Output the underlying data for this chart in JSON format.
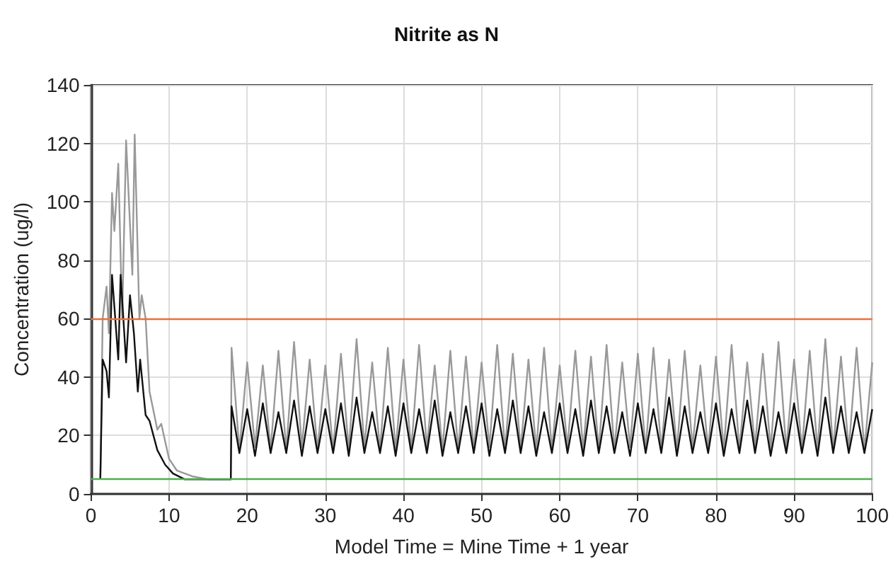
{
  "chart_data": {
    "type": "line",
    "title": "Nitrite as N",
    "xlabel": "Model Time = Mine Time + 1 year",
    "ylabel": "Concentration (ug/l)",
    "xlim": [
      0,
      100
    ],
    "xticks": [
      0,
      10,
      20,
      30,
      40,
      50,
      60,
      70,
      80,
      90,
      100
    ],
    "ylim": [
      0,
      140
    ],
    "yticks": [
      0,
      20,
      40,
      60,
      80,
      100,
      120,
      140
    ],
    "grid": true,
    "marker": "none",
    "line_style": "solid",
    "ref_lines": [
      {
        "axis": "y",
        "value": 60,
        "label": null,
        "color": "#e8703a"
      },
      {
        "axis": "y",
        "value": 5,
        "label": null,
        "color": "#4caf50"
      }
    ],
    "series": [
      {
        "color": "#999999",
        "x": [
          1.2,
          1.5,
          2,
          2.3,
          2.7,
          3,
          3.5,
          4,
          4.5,
          5.3,
          5.6,
          6.2,
          6.5,
          7,
          7.5,
          8.5,
          9,
          10,
          11,
          13,
          15,
          17.9,
          18,
          19,
          20,
          21,
          22,
          23,
          24,
          25,
          26,
          27,
          28,
          29,
          30,
          31,
          32,
          33,
          34,
          35,
          36,
          37,
          38,
          39,
          40,
          41,
          42,
          43,
          44,
          45,
          46,
          47,
          48,
          49,
          50,
          51,
          52,
          53,
          54,
          55,
          56,
          57,
          58,
          59,
          60,
          61,
          62,
          63,
          64,
          65,
          66,
          67,
          68,
          69,
          70,
          71,
          72,
          73,
          74,
          75,
          76,
          77,
          78,
          79,
          80,
          81,
          82,
          83,
          84,
          85,
          86,
          87,
          88,
          89,
          90,
          91,
          92,
          93,
          94,
          95,
          96,
          97,
          98,
          99,
          100
        ],
        "values": [
          5,
          60,
          71,
          55,
          103,
          90,
          113,
          60,
          121,
          75,
          123,
          60,
          68,
          60,
          35,
          22,
          24,
          12,
          8,
          6,
          5,
          5,
          50,
          15,
          45,
          16,
          44,
          15,
          49,
          15,
          52,
          16,
          46,
          15,
          44,
          15,
          48,
          15,
          53,
          16,
          45,
          15,
          50,
          15,
          46,
          15,
          51,
          16,
          44,
          15,
          49,
          15,
          47,
          15,
          45,
          16,
          51,
          15,
          48,
          15,
          46,
          15,
          50,
          15,
          44,
          16,
          49,
          15,
          47,
          15,
          51,
          15,
          45,
          16,
          48,
          15,
          50,
          15,
          46,
          15,
          49,
          16,
          44,
          15,
          47,
          15,
          51,
          15,
          45,
          16,
          48,
          15,
          52,
          15,
          46,
          15,
          49,
          15,
          53,
          15,
          47,
          15,
          50,
          15,
          45
        ]
      },
      {
        "color": "#111111",
        "x": [
          1.2,
          1.5,
          2,
          2.3,
          2.7,
          3.5,
          3.8,
          4.5,
          5,
          5.5,
          6,
          6.3,
          7,
          7.5,
          8.5,
          9.5,
          10.5,
          12,
          17.9,
          18,
          19,
          20,
          21,
          22,
          23,
          24,
          25,
          26,
          27,
          28,
          29,
          30,
          31,
          32,
          33,
          34,
          35,
          36,
          37,
          38,
          39,
          40,
          41,
          42,
          43,
          44,
          45,
          46,
          47,
          48,
          49,
          50,
          51,
          52,
          53,
          54,
          55,
          56,
          57,
          58,
          59,
          60,
          61,
          62,
          63,
          64,
          65,
          66,
          67,
          68,
          69,
          70,
          71,
          72,
          73,
          74,
          75,
          76,
          77,
          78,
          79,
          80,
          81,
          82,
          83,
          84,
          85,
          86,
          87,
          88,
          89,
          90,
          91,
          92,
          93,
          94,
          95,
          96,
          97,
          98,
          99,
          100
        ],
        "values": [
          5,
          46,
          42,
          33,
          75,
          46,
          75,
          45,
          68,
          55,
          35,
          46,
          27,
          25,
          15,
          10,
          7,
          5,
          5,
          30,
          14,
          29,
          13,
          31,
          14,
          28,
          14,
          32,
          13,
          30,
          14,
          29,
          14,
          31,
          13,
          33,
          14,
          28,
          14,
          30,
          13,
          31,
          14,
          29,
          14,
          32,
          13,
          28,
          14,
          30,
          14,
          31,
          13,
          29,
          14,
          32,
          14,
          30,
          13,
          28,
          14,
          31,
          14,
          29,
          13,
          32,
          14,
          30,
          14,
          28,
          13,
          31,
          14,
          29,
          14,
          33,
          13,
          30,
          14,
          28,
          14,
          31,
          13,
          29,
          14,
          32,
          14,
          30,
          13,
          28,
          14,
          31,
          14,
          29,
          13,
          33,
          14,
          30,
          14,
          28,
          14,
          29
        ]
      }
    ]
  }
}
